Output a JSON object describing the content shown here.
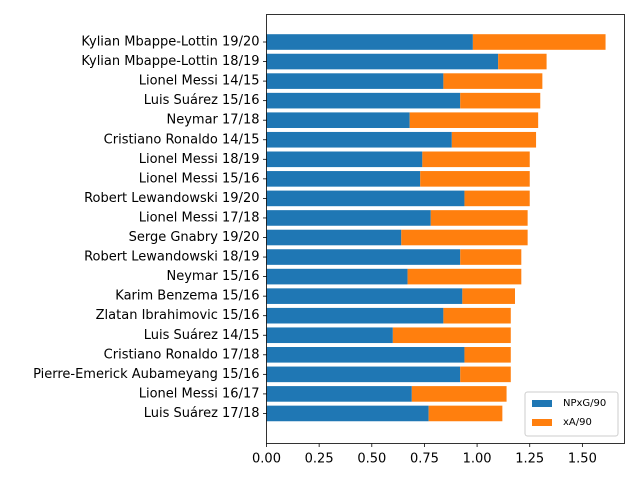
{
  "chart_data": {
    "type": "bar",
    "orientation": "horizontal",
    "stacked": true,
    "categories": [
      "Kylian Mbappe-Lottin 19/20",
      "Kylian Mbappe-Lottin 18/19",
      "Lionel Messi 14/15",
      "Luis Suárez 15/16",
      "Neymar 17/18",
      "Cristiano Ronaldo 14/15",
      "Lionel Messi 18/19",
      "Lionel Messi 15/16",
      "Robert Lewandowski 19/20",
      "Lionel Messi 17/18",
      "Serge Gnabry 19/20",
      "Robert Lewandowski 18/19",
      "Neymar 15/16",
      "Karim Benzema 15/16",
      "Zlatan Ibrahimovic 15/16",
      "Luis Suárez 14/15",
      "Cristiano Ronaldo 17/18",
      "Pierre-Emerick Aubameyang 15/16",
      "Lionel Messi 16/17",
      "Luis Suárez 17/18"
    ],
    "series": [
      {
        "name": "NPxG/90",
        "color": "#1f77b4",
        "values": [
          0.98,
          1.1,
          0.84,
          0.92,
          0.68,
          0.88,
          0.74,
          0.73,
          0.94,
          0.78,
          0.64,
          0.92,
          0.67,
          0.93,
          0.84,
          0.6,
          0.94,
          0.92,
          0.69,
          0.77
        ]
      },
      {
        "name": "xA/90",
        "color": "#ff7f0e",
        "values": [
          0.63,
          0.23,
          0.47,
          0.38,
          0.61,
          0.4,
          0.51,
          0.52,
          0.31,
          0.46,
          0.6,
          0.29,
          0.54,
          0.25,
          0.32,
          0.56,
          0.22,
          0.24,
          0.45,
          0.35
        ]
      }
    ],
    "xlim": [
      0,
      1.7
    ],
    "xticks": [
      "0.00",
      "0.25",
      "0.50",
      "0.75",
      "1.00",
      "1.25",
      "1.50"
    ],
    "legend_position": "lower-right",
    "grid": false,
    "title": "",
    "xlabel": "",
    "ylabel": ""
  }
}
